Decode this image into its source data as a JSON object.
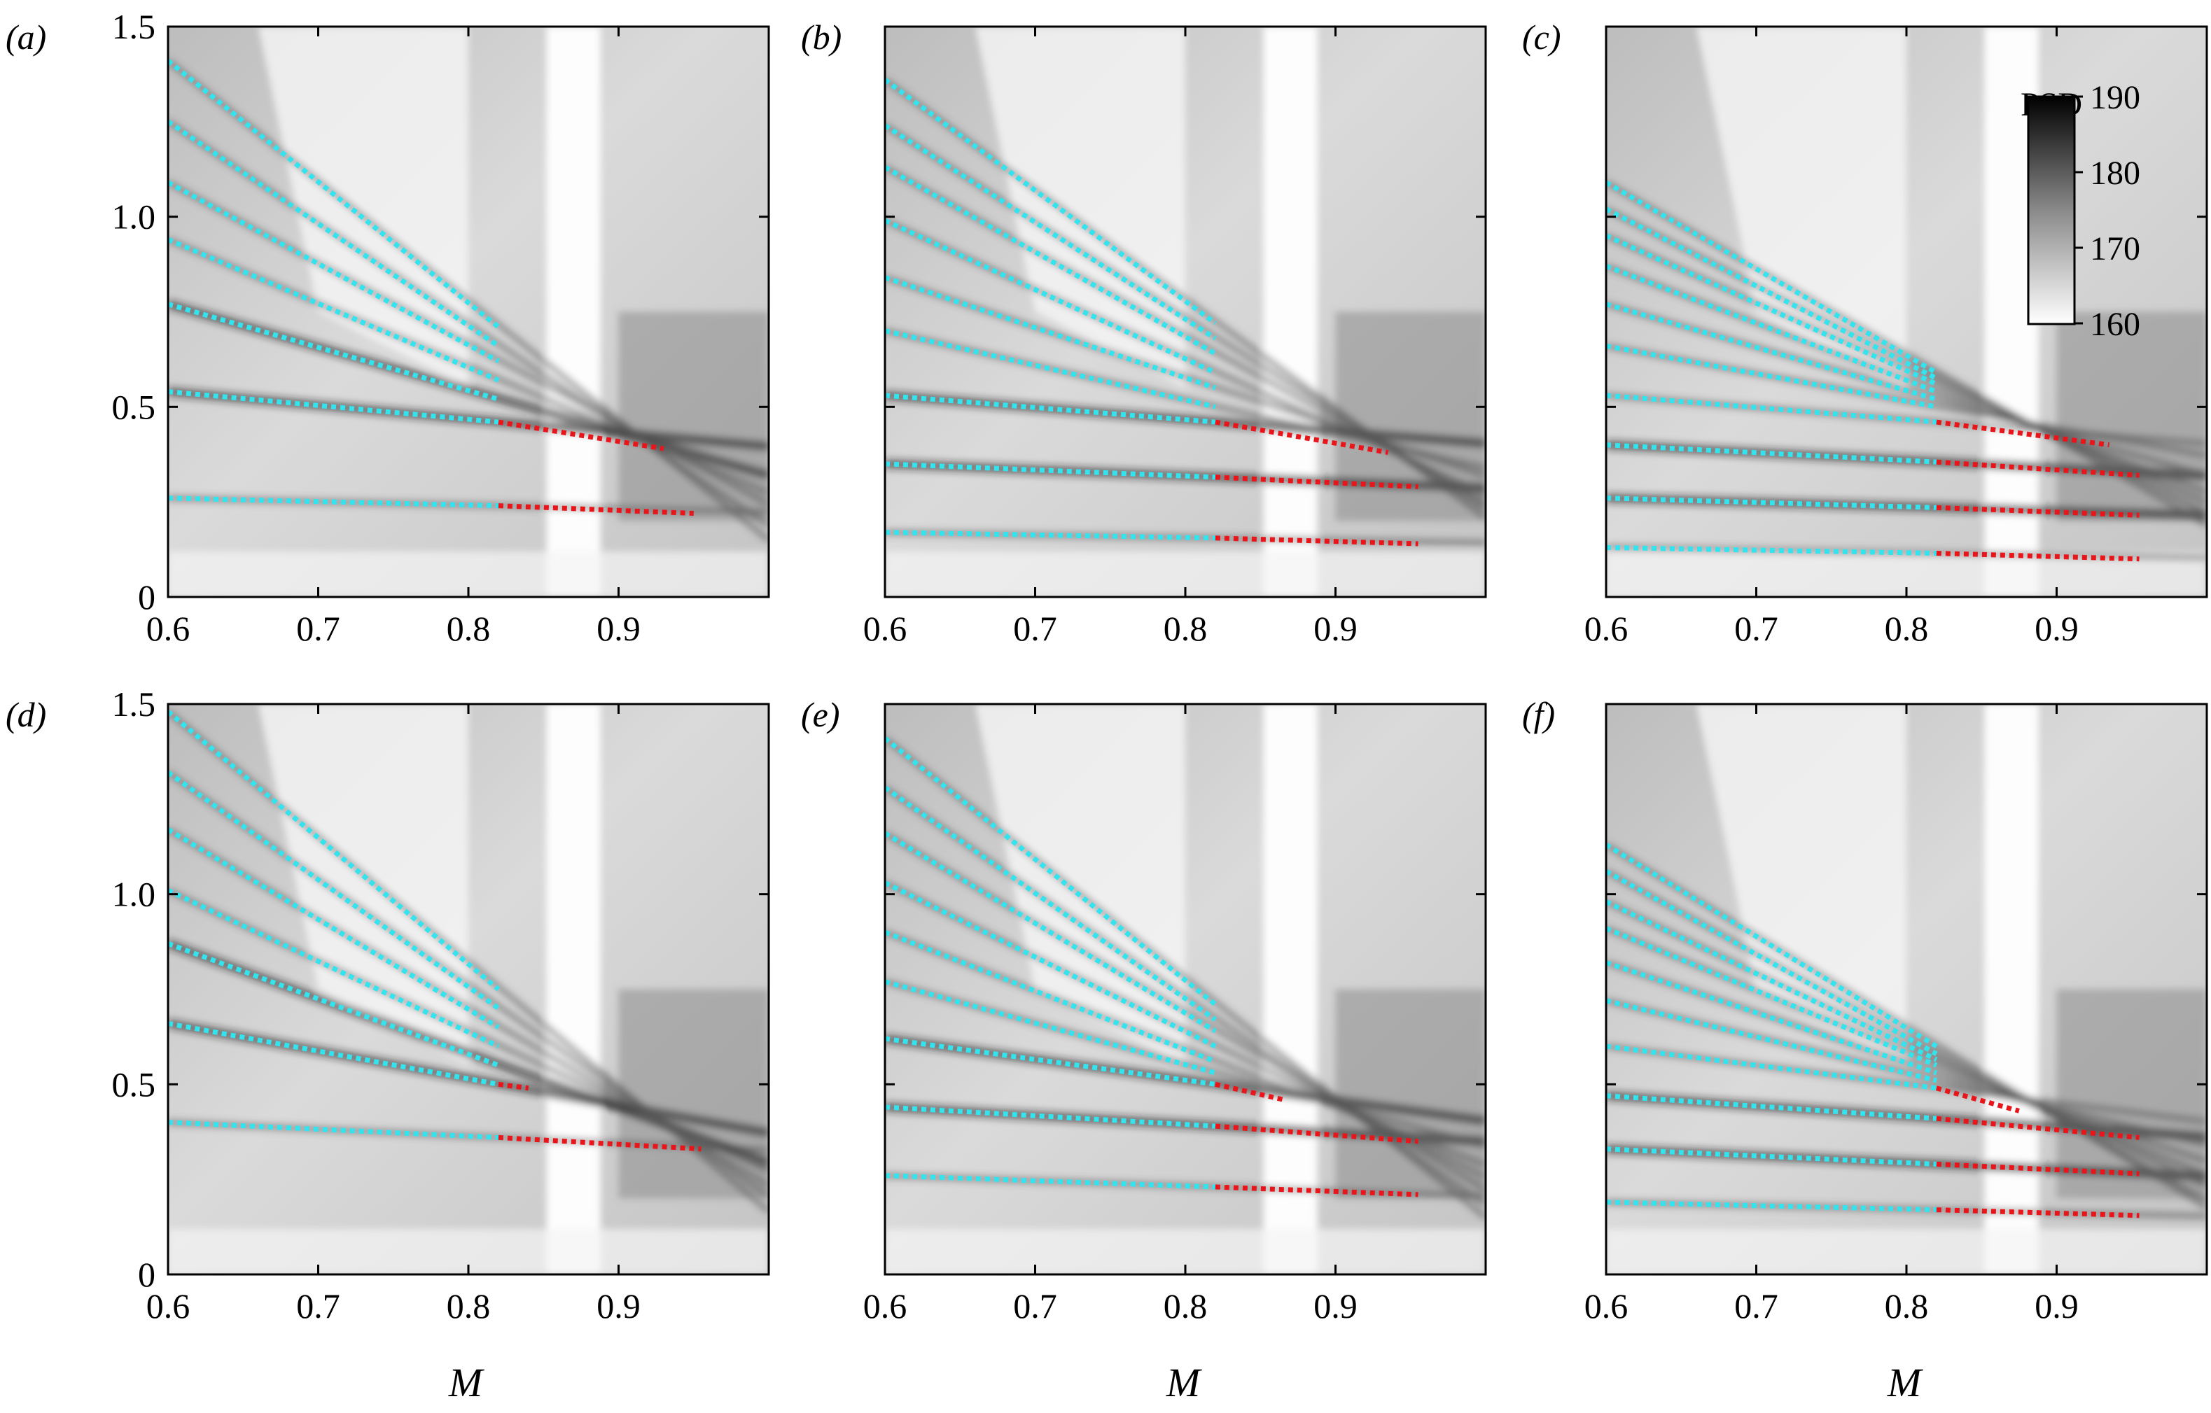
{
  "figure": {
    "x_axis_label": "M",
    "colorbar": {
      "title": "PSD",
      "ticks": [
        "190",
        "180",
        "170",
        "160"
      ],
      "range": [
        160,
        190
      ],
      "colormap": [
        "#ffffff",
        "#000000"
      ]
    },
    "colors": {
      "mode_line_low_M": "#33e3ee",
      "mode_line_high_M": "#e8161a"
    }
  },
  "chart_data": [
    {
      "label": "(a)",
      "type": "heatmap",
      "xlim": [
        0.6,
        1.0
      ],
      "ylim": [
        0,
        1.5
      ],
      "xticks": [
        "0.6",
        "0.7",
        "0.8",
        "0.9"
      ],
      "yticks": [
        "0",
        "0.5",
        "1.0",
        "1.5"
      ],
      "cyan_lines": [
        {
          "x": [
            0.6,
            0.82
          ],
          "y": [
            0.26,
            0.24
          ]
        },
        {
          "x": [
            0.6,
            0.82
          ],
          "y": [
            0.54,
            0.46
          ]
        },
        {
          "x": [
            0.6,
            0.82
          ],
          "y": [
            0.77,
            0.52
          ]
        },
        {
          "x": [
            0.6,
            0.82
          ],
          "y": [
            0.94,
            0.57
          ]
        },
        {
          "x": [
            0.6,
            0.82
          ],
          "y": [
            1.09,
            0.62
          ]
        },
        {
          "x": [
            0.6,
            0.82
          ],
          "y": [
            1.25,
            0.66
          ]
        },
        {
          "x": [
            0.6,
            0.82
          ],
          "y": [
            1.41,
            0.71
          ]
        }
      ],
      "red_lines": [
        {
          "x": [
            0.82,
            0.95
          ],
          "y": [
            0.24,
            0.22
          ]
        },
        {
          "x": [
            0.82,
            0.93
          ],
          "y": [
            0.46,
            0.39
          ]
        }
      ]
    },
    {
      "label": "(b)",
      "type": "heatmap",
      "xlim": [
        0.6,
        1.0
      ],
      "ylim": [
        0,
        1.5
      ],
      "xticks": [
        "0.6",
        "0.7",
        "0.8",
        "0.9"
      ],
      "yticks": [],
      "cyan_lines": [
        {
          "x": [
            0.6,
            0.82
          ],
          "y": [
            0.17,
            0.155
          ]
        },
        {
          "x": [
            0.6,
            0.82
          ],
          "y": [
            0.35,
            0.315
          ]
        },
        {
          "x": [
            0.6,
            0.82
          ],
          "y": [
            0.53,
            0.46
          ]
        },
        {
          "x": [
            0.6,
            0.82
          ],
          "y": [
            0.7,
            0.5
          ]
        },
        {
          "x": [
            0.6,
            0.82
          ],
          "y": [
            0.84,
            0.55
          ]
        },
        {
          "x": [
            0.6,
            0.82
          ],
          "y": [
            0.99,
            0.59
          ]
        },
        {
          "x": [
            0.6,
            0.82
          ],
          "y": [
            1.13,
            0.64
          ]
        },
        {
          "x": [
            0.6,
            0.82
          ],
          "y": [
            1.24,
            0.68
          ]
        },
        {
          "x": [
            0.6,
            0.82
          ],
          "y": [
            1.36,
            0.72
          ]
        }
      ],
      "red_lines": [
        {
          "x": [
            0.82,
            0.955
          ],
          "y": [
            0.155,
            0.14
          ]
        },
        {
          "x": [
            0.82,
            0.955
          ],
          "y": [
            0.315,
            0.29
          ]
        },
        {
          "x": [
            0.82,
            0.935
          ],
          "y": [
            0.46,
            0.38
          ]
        }
      ]
    },
    {
      "label": "(c)",
      "type": "heatmap",
      "xlim": [
        0.6,
        1.0
      ],
      "ylim": [
        0,
        1.5
      ],
      "xticks": [
        "0.6",
        "0.7",
        "0.8",
        "0.9"
      ],
      "yticks": [],
      "cyan_lines": [
        {
          "x": [
            0.6,
            0.82
          ],
          "y": [
            0.13,
            0.115
          ]
        },
        {
          "x": [
            0.6,
            0.82
          ],
          "y": [
            0.26,
            0.235
          ]
        },
        {
          "x": [
            0.6,
            0.82
          ],
          "y": [
            0.4,
            0.355
          ]
        },
        {
          "x": [
            0.6,
            0.82
          ],
          "y": [
            0.53,
            0.46
          ]
        },
        {
          "x": [
            0.6,
            0.82
          ],
          "y": [
            0.66,
            0.5
          ]
        },
        {
          "x": [
            0.6,
            0.82
          ],
          "y": [
            0.77,
            0.52
          ]
        },
        {
          "x": [
            0.6,
            0.82
          ],
          "y": [
            0.87,
            0.54
          ]
        },
        {
          "x": [
            0.6,
            0.82
          ],
          "y": [
            0.95,
            0.56
          ]
        },
        {
          "x": [
            0.6,
            0.82
          ],
          "y": [
            1.02,
            0.575
          ]
        },
        {
          "x": [
            0.6,
            0.82
          ],
          "y": [
            1.09,
            0.59
          ]
        }
      ],
      "red_lines": [
        {
          "x": [
            0.82,
            0.955
          ],
          "y": [
            0.115,
            0.1
          ]
        },
        {
          "x": [
            0.82,
            0.955
          ],
          "y": [
            0.235,
            0.215
          ]
        },
        {
          "x": [
            0.82,
            0.955
          ],
          "y": [
            0.355,
            0.32
          ]
        },
        {
          "x": [
            0.82,
            0.935
          ],
          "y": [
            0.46,
            0.4
          ]
        }
      ]
    },
    {
      "label": "(d)",
      "type": "heatmap",
      "xlim": [
        0.6,
        1.0
      ],
      "ylim": [
        0,
        1.5
      ],
      "xticks": [
        "0.6",
        "0.7",
        "0.8",
        "0.9"
      ],
      "yticks": [
        "0",
        "0.5",
        "1.0",
        "1.5"
      ],
      "cyan_lines": [
        {
          "x": [
            0.6,
            0.82
          ],
          "y": [
            0.4,
            0.36
          ]
        },
        {
          "x": [
            0.6,
            0.82
          ],
          "y": [
            0.66,
            0.5
          ]
        },
        {
          "x": [
            0.6,
            0.82
          ],
          "y": [
            0.87,
            0.55
          ]
        },
        {
          "x": [
            0.6,
            0.82
          ],
          "y": [
            1.01,
            0.6
          ]
        },
        {
          "x": [
            0.6,
            0.82
          ],
          "y": [
            1.17,
            0.65
          ]
        },
        {
          "x": [
            0.6,
            0.82
          ],
          "y": [
            1.32,
            0.7
          ]
        },
        {
          "x": [
            0.6,
            0.82
          ],
          "y": [
            1.48,
            0.75
          ]
        }
      ],
      "red_lines": [
        {
          "x": [
            0.82,
            0.955
          ],
          "y": [
            0.36,
            0.33
          ]
        },
        {
          "x": [
            0.82,
            0.84
          ],
          "y": [
            0.5,
            0.49
          ]
        }
      ]
    },
    {
      "label": "(e)",
      "type": "heatmap",
      "xlim": [
        0.6,
        1.0
      ],
      "ylim": [
        0,
        1.5
      ],
      "xticks": [
        "0.6",
        "0.7",
        "0.8",
        "0.9"
      ],
      "yticks": [],
      "cyan_lines": [
        {
          "x": [
            0.6,
            0.82
          ],
          "y": [
            0.26,
            0.23
          ]
        },
        {
          "x": [
            0.6,
            0.82
          ],
          "y": [
            0.44,
            0.39
          ]
        },
        {
          "x": [
            0.6,
            0.82
          ],
          "y": [
            0.62,
            0.5
          ]
        },
        {
          "x": [
            0.6,
            0.82
          ],
          "y": [
            0.77,
            0.53
          ]
        },
        {
          "x": [
            0.6,
            0.82
          ],
          "y": [
            0.9,
            0.56
          ]
        },
        {
          "x": [
            0.6,
            0.82
          ],
          "y": [
            1.03,
            0.6
          ]
        },
        {
          "x": [
            0.6,
            0.82
          ],
          "y": [
            1.16,
            0.64
          ]
        },
        {
          "x": [
            0.6,
            0.82
          ],
          "y": [
            1.28,
            0.67
          ]
        },
        {
          "x": [
            0.6,
            0.82
          ],
          "y": [
            1.41,
            0.71
          ]
        }
      ],
      "red_lines": [
        {
          "x": [
            0.82,
            0.955
          ],
          "y": [
            0.23,
            0.21
          ]
        },
        {
          "x": [
            0.82,
            0.955
          ],
          "y": [
            0.39,
            0.35
          ]
        },
        {
          "x": [
            0.82,
            0.865
          ],
          "y": [
            0.5,
            0.46
          ]
        }
      ]
    },
    {
      "label": "(f)",
      "type": "heatmap",
      "xlim": [
        0.6,
        1.0
      ],
      "ylim": [
        0,
        1.5
      ],
      "xticks": [
        "0.6",
        "0.7",
        "0.8",
        "0.9"
      ],
      "yticks": [],
      "cyan_lines": [
        {
          "x": [
            0.6,
            0.82
          ],
          "y": [
            0.19,
            0.17
          ]
        },
        {
          "x": [
            0.6,
            0.82
          ],
          "y": [
            0.33,
            0.29
          ]
        },
        {
          "x": [
            0.6,
            0.82
          ],
          "y": [
            0.47,
            0.41
          ]
        },
        {
          "x": [
            0.6,
            0.82
          ],
          "y": [
            0.6,
            0.49
          ]
        },
        {
          "x": [
            0.6,
            0.82
          ],
          "y": [
            0.72,
            0.51
          ]
        },
        {
          "x": [
            0.6,
            0.82
          ],
          "y": [
            0.82,
            0.53
          ]
        },
        {
          "x": [
            0.6,
            0.82
          ],
          "y": [
            0.91,
            0.55
          ]
        },
        {
          "x": [
            0.6,
            0.82
          ],
          "y": [
            0.98,
            0.565
          ]
        },
        {
          "x": [
            0.6,
            0.82
          ],
          "y": [
            1.06,
            0.58
          ]
        },
        {
          "x": [
            0.6,
            0.82
          ],
          "y": [
            1.13,
            0.6
          ]
        }
      ],
      "red_lines": [
        {
          "x": [
            0.82,
            0.955
          ],
          "y": [
            0.17,
            0.155
          ]
        },
        {
          "x": [
            0.82,
            0.955
          ],
          "y": [
            0.29,
            0.265
          ]
        },
        {
          "x": [
            0.82,
            0.955
          ],
          "y": [
            0.41,
            0.36
          ]
        },
        {
          "x": [
            0.82,
            0.875
          ],
          "y": [
            0.49,
            0.43
          ]
        }
      ]
    }
  ]
}
